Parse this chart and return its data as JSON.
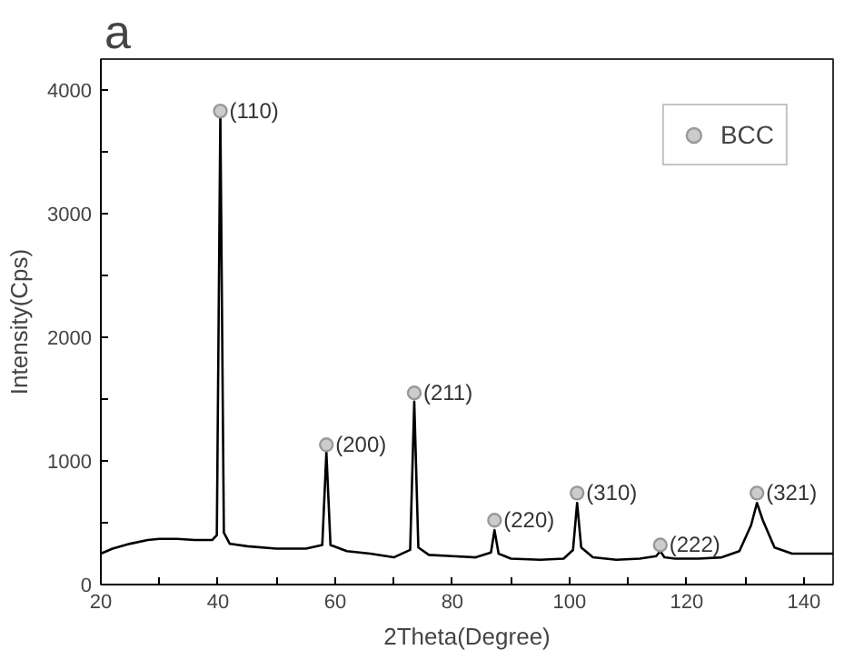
{
  "chart_data": {
    "type": "line",
    "title": "a",
    "xlabel": "2Theta(Degree)",
    "ylabel": "Intensity(Cps)",
    "series": [
      {
        "color": "#000000",
        "x": [
          20,
          22,
          25,
          28,
          30,
          33,
          36,
          39,
          39.8,
          40.4,
          41,
          42,
          45,
          50,
          55,
          57.8,
          58.5,
          59.2,
          62,
          66,
          70,
          72.8,
          73.5,
          74.2,
          76,
          80,
          84,
          86.6,
          87.2,
          87.9,
          90,
          95,
          99,
          100.6,
          101.3,
          102,
          104,
          108,
          112,
          114.8,
          115.5,
          116.2,
          118,
          122,
          126,
          129,
          131,
          132,
          133,
          135,
          138,
          142,
          145
        ],
        "values": [
          250,
          290,
          330,
          360,
          370,
          370,
          360,
          360,
          400,
          3800,
          420,
          330,
          310,
          290,
          290,
          320,
          1070,
          320,
          270,
          250,
          220,
          280,
          1480,
          300,
          240,
          230,
          220,
          260,
          440,
          250,
          210,
          200,
          210,
          280,
          660,
          300,
          220,
          200,
          210,
          230,
          270,
          220,
          210,
          210,
          220,
          270,
          480,
          660,
          520,
          300,
          250,
          250,
          250
        ]
      },
      {
        "type": "scatter",
        "name": "BCC",
        "color": "#999999",
        "marker": "circle",
        "x": [
          40.4,
          58.5,
          73.5,
          87.2,
          101.3,
          115.5,
          132
        ],
        "values": [
          3830,
          1130,
          1550,
          520,
          740,
          320,
          740
        ]
      }
    ],
    "annotations": [
      {
        "text": "(110)",
        "x": 40.4,
        "y": 3830
      },
      {
        "text": "(200)",
        "x": 58.5,
        "y": 1130
      },
      {
        "text": "(211)",
        "x": 73.5,
        "y": 1550
      },
      {
        "text": "(220)",
        "x": 87.2,
        "y": 520
      },
      {
        "text": "(310)",
        "x": 101.3,
        "y": 740
      },
      {
        "text": "(222)",
        "x": 115.5,
        "y": 320
      },
      {
        "text": "(321)",
        "x": 132,
        "y": 740
      }
    ],
    "xlim": [
      20,
      145
    ],
    "ylim": [
      0,
      4250
    ],
    "xticks": [
      20,
      {
        "value": 30,
        "label": null
      },
      40,
      {
        "value": 50,
        "label": null
      },
      60,
      {
        "value": 70,
        "label": null
      },
      80,
      {
        "value": 90,
        "label": null
      },
      100,
      {
        "value": 110,
        "label": null
      },
      120,
      {
        "value": 130,
        "label": null
      },
      140
    ],
    "yticks": [
      0,
      {
        "value": 500,
        "label": null
      },
      1000,
      {
        "value": 1500,
        "label": null
      },
      2000,
      {
        "value": 2500,
        "label": null
      },
      3000,
      {
        "value": 3500,
        "label": null
      },
      4000
    ],
    "grid": false,
    "legend": "top right"
  }
}
